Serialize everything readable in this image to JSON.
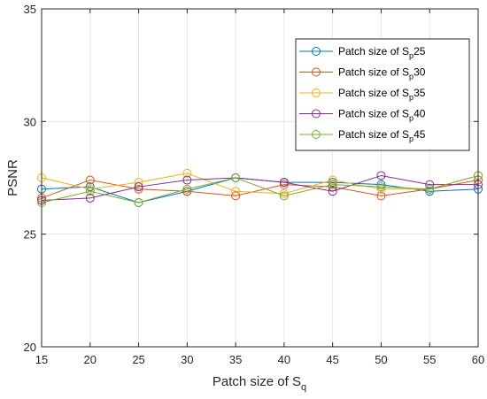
{
  "chart_data": {
    "type": "line",
    "xlabel": "Patch size of S",
    "xlabel_sub": "q",
    "ylabel": "PSNR",
    "xlim": [
      15,
      60
    ],
    "ylim": [
      20,
      35
    ],
    "x": [
      15,
      20,
      25,
      30,
      35,
      40,
      45,
      50,
      55,
      60
    ],
    "xticks": [
      "15",
      "20",
      "25",
      "30",
      "35",
      "40",
      "45",
      "50",
      "55",
      "60"
    ],
    "yticks": [
      20,
      25,
      30,
      35
    ],
    "ytick_labels": [
      "20",
      "25",
      "30",
      "35"
    ],
    "grid": true,
    "legend_position": "top-right",
    "series": [
      {
        "name_prefix": "Patch size of S",
        "name_sub": "p",
        "name_suffix": "25",
        "color": "#0072BD",
        "values": [
          27.0,
          27.1,
          26.4,
          26.9,
          27.5,
          27.3,
          27.3,
          27.2,
          26.9,
          27.0
        ]
      },
      {
        "name_prefix": "Patch size of S",
        "name_sub": "p",
        "name_suffix": "30",
        "color": "#D95319",
        "values": [
          26.6,
          27.4,
          27.0,
          26.9,
          26.7,
          27.2,
          27.1,
          26.7,
          27.0,
          27.4
        ]
      },
      {
        "name_prefix": "Patch size of S",
        "name_sub": "p",
        "name_suffix": "35",
        "color": "#EDB120",
        "values": [
          27.5,
          27.0,
          27.3,
          27.7,
          26.9,
          26.8,
          27.4,
          27.0,
          27.0,
          27.6
        ]
      },
      {
        "name_prefix": "Patch size of S",
        "name_sub": "p",
        "name_suffix": "40",
        "color": "#7E2F8E",
        "values": [
          26.5,
          26.6,
          27.1,
          27.4,
          27.5,
          27.3,
          26.9,
          27.6,
          27.2,
          27.2
        ]
      },
      {
        "name_prefix": "Patch size of S",
        "name_sub": "p",
        "name_suffix": "45",
        "color": "#77AC30",
        "values": [
          26.4,
          26.9,
          26.4,
          27.0,
          27.5,
          26.7,
          27.2,
          27.1,
          27.0,
          27.6
        ]
      }
    ]
  }
}
